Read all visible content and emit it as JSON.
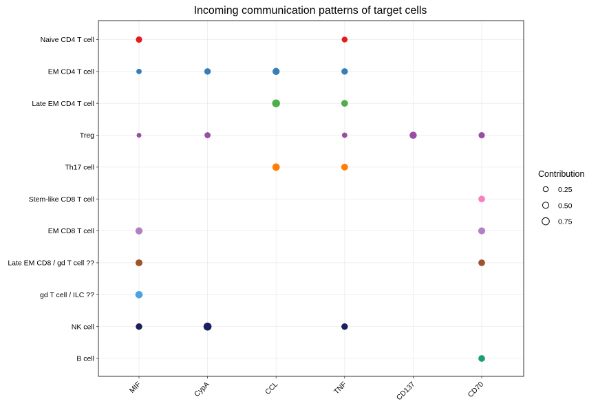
{
  "chart_data": {
    "type": "scatter",
    "title": "Incoming communication patterns of target cells",
    "xlabel": "",
    "ylabel": "",
    "x_categories": [
      "MIF",
      "CypA",
      "CCL",
      "TNF",
      "CD137",
      "CD70"
    ],
    "y_categories": [
      "Naive CD4 T cell",
      "EM CD4 T cell",
      "Late EM CD4 T cell",
      "Treg",
      "Th17 cell",
      "Stem-like CD8 T cell",
      "EM CD8 T cell",
      "Late EM CD8 / gd T cell ??",
      "gd T cell / ILC ??",
      "NK cell",
      "B cell"
    ],
    "colors": {
      "Naive CD4 T cell": "#e41a1c",
      "EM CD4 T cell": "#377eb8",
      "Late EM CD4 T cell": "#4daf4a",
      "Treg": "#984ea3",
      "Th17 cell": "#ff7f00",
      "Stem-like CD8 T cell": "#f781bf",
      "EM CD8 T cell": "#b17fc3",
      "Late EM CD8 / gd T cell ??": "#a0522d",
      "gd T cell / ILC ??": "#4ba3e0",
      "NK cell": "#1b1f5e",
      "B cell": "#1b9e77"
    },
    "points": [
      {
        "x": "MIF",
        "y": "Naive CD4 T cell",
        "contribution": 0.5
      },
      {
        "x": "TNF",
        "y": "Naive CD4 T cell",
        "contribution": 0.4
      },
      {
        "x": "MIF",
        "y": "EM CD4 T cell",
        "contribution": 0.3
      },
      {
        "x": "CypA",
        "y": "EM CD4 T cell",
        "contribution": 0.55
      },
      {
        "x": "CCL",
        "y": "EM CD4 T cell",
        "contribution": 0.72
      },
      {
        "x": "TNF",
        "y": "EM CD4 T cell",
        "contribution": 0.55
      },
      {
        "x": "CCL",
        "y": "Late EM CD4 T cell",
        "contribution": 0.95
      },
      {
        "x": "TNF",
        "y": "Late EM CD4 T cell",
        "contribution": 0.62
      },
      {
        "x": "MIF",
        "y": "Treg",
        "contribution": 0.2
      },
      {
        "x": "CypA",
        "y": "Treg",
        "contribution": 0.45
      },
      {
        "x": "TNF",
        "y": "Treg",
        "contribution": 0.3
      },
      {
        "x": "CD137",
        "y": "Treg",
        "contribution": 0.75
      },
      {
        "x": "CD70",
        "y": "Treg",
        "contribution": 0.5
      },
      {
        "x": "CCL",
        "y": "Th17 cell",
        "contribution": 0.8
      },
      {
        "x": "TNF",
        "y": "Th17 cell",
        "contribution": 0.62
      },
      {
        "x": "CD70",
        "y": "Stem-like CD8 T cell",
        "contribution": 0.6
      },
      {
        "x": "MIF",
        "y": "EM CD8 T cell",
        "contribution": 0.72
      },
      {
        "x": "CD70",
        "y": "EM CD8 T cell",
        "contribution": 0.68
      },
      {
        "x": "MIF",
        "y": "Late EM CD8 / gd T cell ??",
        "contribution": 0.65
      },
      {
        "x": "CD70",
        "y": "Late EM CD8 / gd T cell ??",
        "contribution": 0.6
      },
      {
        "x": "MIF",
        "y": "gd T cell / ILC ??",
        "contribution": 0.78
      },
      {
        "x": "MIF",
        "y": "NK cell",
        "contribution": 0.55
      },
      {
        "x": "CypA",
        "y": "NK cell",
        "contribution": 1.0
      },
      {
        "x": "TNF",
        "y": "NK cell",
        "contribution": 0.55
      },
      {
        "x": "CD70",
        "y": "B cell",
        "contribution": 0.6
      }
    ],
    "legend": {
      "title": "Contribution",
      "position": "right",
      "entries": [
        {
          "label": "0.25",
          "value": 0.25
        },
        {
          "label": "0.50",
          "value": 0.5
        },
        {
          "label": "0.75",
          "value": 0.75
        }
      ]
    },
    "grid": true
  }
}
